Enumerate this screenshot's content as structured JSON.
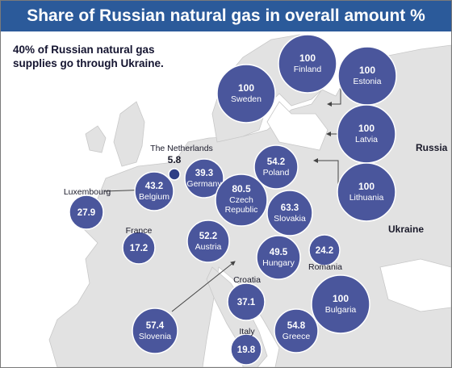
{
  "header": {
    "title": "Share of Russian natural gas in overall amount %"
  },
  "subtitle": "40% of Russian natural gas supplies go through Ukraine.",
  "region_labels": {
    "russia": "Russia",
    "ukraine": "Ukraine"
  },
  "colors": {
    "header_bg": "#2b5a9a",
    "bubble_fill": "#4a569c",
    "bubble_stroke": "#ffffff",
    "map_land": "#e2e2e2",
    "map_sea": "#ffffff",
    "arrow": "#444444"
  },
  "chart_data": {
    "type": "bubble-map",
    "title": "Share of Russian natural gas in overall amount %",
    "subtitle": "40% of Russian natural gas supplies go through Ukraine.",
    "unit": "%",
    "series": [
      {
        "points": [
          {
            "country": "Finland",
            "value": 100
          },
          {
            "country": "Estonia",
            "value": 100
          },
          {
            "country": "Sweden",
            "value": 100
          },
          {
            "country": "Latvia",
            "value": 100
          },
          {
            "country": "The Netherlands",
            "value": 5.8
          },
          {
            "country": "Poland",
            "value": 54.2
          },
          {
            "country": "Belgium",
            "value": 43.2
          },
          {
            "country": "Germany",
            "value": 39.3
          },
          {
            "country": "Lithuania",
            "value": 100
          },
          {
            "country": "Luxembourg",
            "value": 27.9
          },
          {
            "country": "Czech Republic",
            "value": 80.5
          },
          {
            "country": "Slovakia",
            "value": 63.3
          },
          {
            "country": "France",
            "value": 17.2
          },
          {
            "country": "Austria",
            "value": 52.2
          },
          {
            "country": "Hungary",
            "value": 49.5
          },
          {
            "country": "Romania",
            "value": 24.2
          },
          {
            "country": "Croatia",
            "value": 37.1
          },
          {
            "country": "Bulgaria",
            "value": 100
          },
          {
            "country": "Slovenia",
            "value": 57.4
          },
          {
            "country": "Greece",
            "value": 54.8
          },
          {
            "country": "Italy",
            "value": 19.8
          }
        ]
      }
    ]
  }
}
